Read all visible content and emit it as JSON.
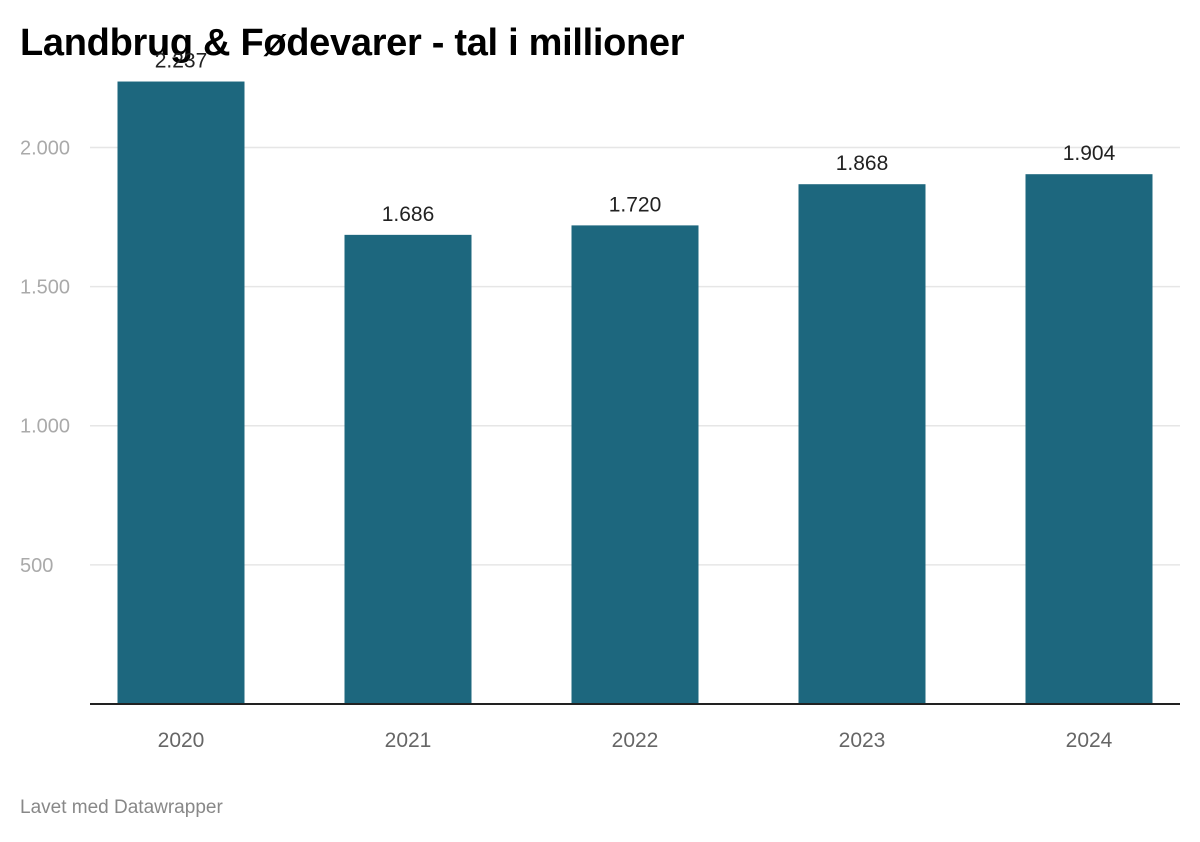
{
  "title": "Landbrug & Fødevarer - tal i millioner",
  "footer": "Lavet med Datawrapper",
  "colors": {
    "bar": "#1d677e",
    "grid": "#e6e6e6",
    "axis": "#222222",
    "tick_label": "#aaaaaa",
    "category_label": "#666666",
    "value_label": "#222222"
  },
  "chart_data": {
    "type": "bar",
    "title": "Landbrug & Fødevarer - tal i millioner",
    "xlabel": "",
    "ylabel": "",
    "categories": [
      "2020",
      "2021",
      "2022",
      "2023",
      "2024"
    ],
    "values": [
      2237,
      1686,
      1720,
      1868,
      1904
    ],
    "value_labels": [
      "2.237",
      "1.686",
      "1.720",
      "1.868",
      "1.904"
    ],
    "yticks": [
      500,
      1000,
      1500,
      2000
    ],
    "ytick_labels": [
      "500",
      "1.000",
      "1.500",
      "2.000"
    ],
    "ylim": [
      0,
      2300
    ],
    "grid": true,
    "legend": "none"
  }
}
